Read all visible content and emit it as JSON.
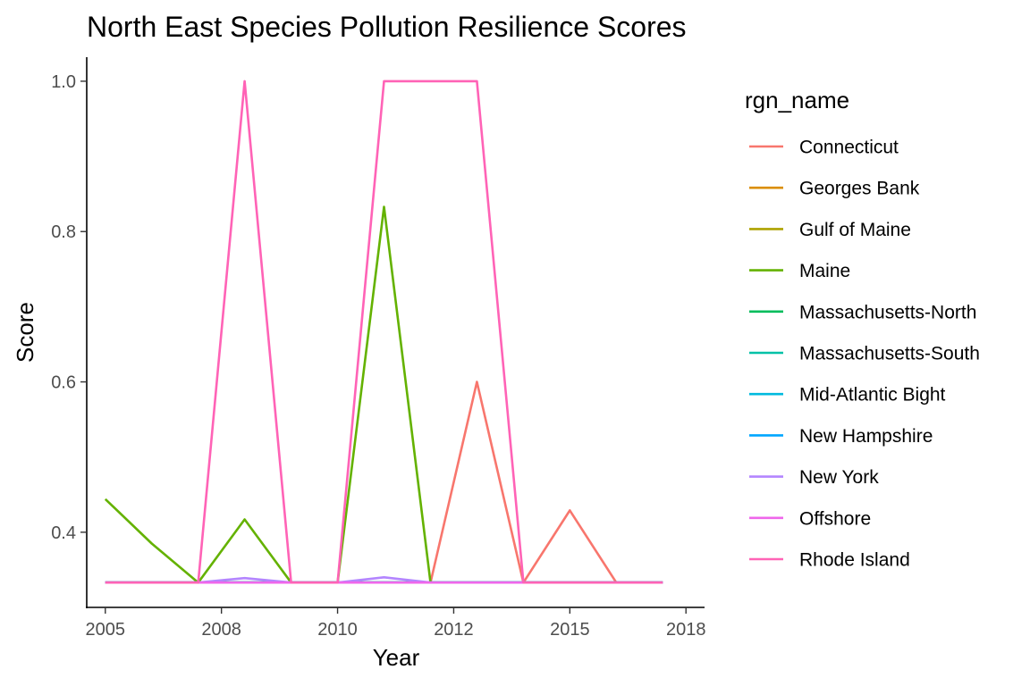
{
  "chart_data": {
    "type": "line",
    "title": "North East Species Pollution Resilience Scores",
    "xlabel": "Year",
    "ylabel": "Score",
    "xlim": [
      2004.6,
      2017.9
    ],
    "ylim": [
      0.3,
      1.032
    ],
    "x_ticks": [
      {
        "value": 2005,
        "label": "2005"
      },
      {
        "value": 2007.5,
        "label": "2008"
      },
      {
        "value": 2010,
        "label": "2010"
      },
      {
        "value": 2012.5,
        "label": "2012"
      },
      {
        "value": 2015,
        "label": "2015"
      },
      {
        "value": 2017.5,
        "label": "2018"
      }
    ],
    "y_ticks": [
      0.4,
      0.6,
      0.8,
      1.0
    ],
    "y_tick_labels": [
      "0.4",
      "0.6",
      "0.8",
      "1.0"
    ],
    "grid": false,
    "legend": {
      "title": "rgn_name",
      "position": "right"
    },
    "x": [
      2005,
      2006,
      2007,
      2008,
      2009,
      2010,
      2011,
      2012,
      2013,
      2014,
      2015,
      2016,
      2017
    ],
    "series": [
      {
        "name": "Connecticut",
        "color": "#F8766D",
        "values": [
          0.333,
          0.333,
          0.333,
          0.333,
          0.333,
          0.333,
          0.333,
          0.333,
          0.6,
          0.333,
          0.429,
          0.333,
          0.333
        ]
      },
      {
        "name": "Georges Bank",
        "color": "#DB8E00",
        "values": [
          0.333,
          0.333,
          0.333,
          0.333,
          0.333,
          0.333,
          0.333,
          0.333,
          0.333,
          0.333,
          0.333,
          0.333,
          0.333
        ]
      },
      {
        "name": "Gulf of Maine",
        "color": "#AEA200",
        "values": [
          0.333,
          0.333,
          0.333,
          0.333,
          0.333,
          0.333,
          0.333,
          0.333,
          0.333,
          0.333,
          0.333,
          0.333,
          0.333
        ]
      },
      {
        "name": "Maine",
        "color": "#64B200",
        "values": [
          0.444,
          0.385,
          0.333,
          0.417,
          0.333,
          0.333,
          0.833,
          0.333,
          0.333,
          0.333,
          0.333,
          0.333,
          0.333
        ]
      },
      {
        "name": "Massachusetts-North",
        "color": "#00BD5C",
        "values": [
          0.333,
          0.333,
          0.333,
          0.333,
          0.333,
          0.333,
          0.333,
          0.333,
          0.333,
          0.333,
          0.333,
          0.333,
          0.333
        ]
      },
      {
        "name": "Massachusetts-South",
        "color": "#00C1A7",
        "values": [
          0.333,
          0.333,
          0.333,
          0.333,
          0.333,
          0.333,
          0.333,
          0.333,
          0.333,
          0.333,
          0.333,
          0.333,
          0.333
        ]
      },
      {
        "name": "Mid-Atlantic Bight",
        "color": "#00BADE",
        "values": [
          0.333,
          0.333,
          0.333,
          0.333,
          0.333,
          0.333,
          0.333,
          0.333,
          0.333,
          0.333,
          0.333,
          0.333,
          0.333
        ]
      },
      {
        "name": "New Hampshire",
        "color": "#00A6FF",
        "values": [
          0.333,
          0.333,
          0.333,
          0.333,
          0.333,
          0.333,
          0.333,
          0.333,
          0.333,
          0.333,
          0.333,
          0.333,
          0.333
        ]
      },
      {
        "name": "New York",
        "color": "#B385FF",
        "values": [
          0.333,
          0.333,
          0.333,
          0.339,
          0.333,
          0.333,
          0.34,
          0.333,
          0.333,
          0.333,
          0.333,
          0.333,
          0.333
        ]
      },
      {
        "name": "Offshore",
        "color": "#EF67EB",
        "values": [
          0.333,
          0.333,
          0.333,
          0.333,
          0.333,
          0.333,
          0.333,
          0.333,
          0.333,
          0.333,
          0.333,
          0.333,
          0.333
        ]
      },
      {
        "name": "Rhode Island",
        "color": "#FF63B6",
        "values": [
          0.333,
          0.333,
          0.333,
          1.0,
          0.333,
          0.333,
          1.0,
          1.0,
          1.0,
          0.333,
          0.333,
          0.333,
          0.333
        ]
      }
    ]
  }
}
